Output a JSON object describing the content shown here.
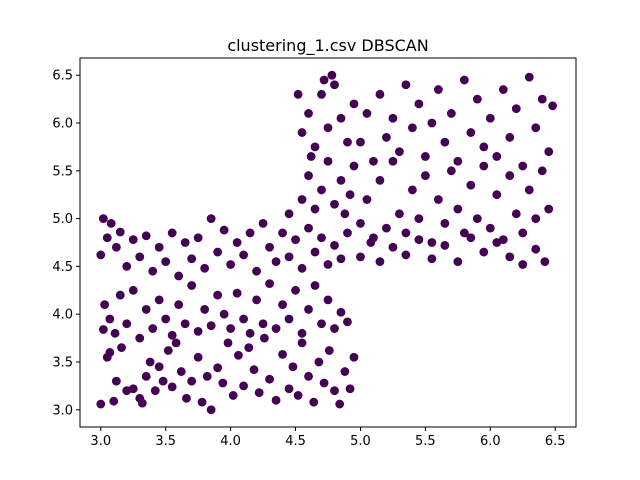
{
  "chart_data": {
    "type": "scatter",
    "title": "clustering_1.csv DBSCAN",
    "xlabel": "",
    "ylabel": "",
    "xlim": [
      2.84,
      6.66
    ],
    "ylim": [
      2.82,
      6.68
    ],
    "xticks": [
      3.0,
      3.5,
      4.0,
      4.5,
      5.0,
      5.5,
      6.0,
      6.5
    ],
    "yticks": [
      3.0,
      3.5,
      4.0,
      4.5,
      5.0,
      5.5,
      6.0,
      6.5
    ],
    "grid": false,
    "marker_color": "#440154",
    "series": [
      {
        "points": [
          [
            3.0,
            3.06
          ],
          [
            3.02,
            3.84
          ],
          [
            3.05,
            3.55
          ],
          [
            3.07,
            3.6
          ],
          [
            3.1,
            3.09
          ],
          [
            3.12,
            3.3
          ],
          [
            3.16,
            3.65
          ],
          [
            3.2,
            3.2
          ],
          [
            3.25,
            3.22
          ],
          [
            3.3,
            3.12
          ],
          [
            3.32,
            3.07
          ],
          [
            3.35,
            3.35
          ],
          [
            3.38,
            3.5
          ],
          [
            3.42,
            3.2
          ],
          [
            3.45,
            3.45
          ],
          [
            3.48,
            3.3
          ],
          [
            3.52,
            3.62
          ],
          [
            3.55,
            3.24
          ],
          [
            3.58,
            3.7
          ],
          [
            3.62,
            3.4
          ],
          [
            3.66,
            3.12
          ],
          [
            3.7,
            3.3
          ],
          [
            3.75,
            3.55
          ],
          [
            3.78,
            3.08
          ],
          [
            3.82,
            3.35
          ],
          [
            3.85,
            3.0
          ],
          [
            3.9,
            3.44
          ],
          [
            3.94,
            3.28
          ],
          [
            3.98,
            3.7
          ],
          [
            4.02,
            3.15
          ],
          [
            4.06,
            3.57
          ],
          [
            4.1,
            3.25
          ],
          [
            4.14,
            3.65
          ],
          [
            4.18,
            3.42
          ],
          [
            4.22,
            3.18
          ],
          [
            4.26,
            3.75
          ],
          [
            4.3,
            3.32
          ],
          [
            4.35,
            3.1
          ],
          [
            4.4,
            3.58
          ],
          [
            4.45,
            3.22
          ],
          [
            4.48,
            3.45
          ],
          [
            4.52,
            3.15
          ],
          [
            4.55,
            3.7
          ],
          [
            4.6,
            3.35
          ],
          [
            4.64,
            3.08
          ],
          [
            4.68,
            3.5
          ],
          [
            4.72,
            3.28
          ],
          [
            4.76,
            3.62
          ],
          [
            4.8,
            3.2
          ],
          [
            4.84,
            3.06
          ],
          [
            4.88,
            3.4
          ],
          [
            4.92,
            3.22
          ],
          [
            4.95,
            3.55
          ],
          [
            3.03,
            4.1
          ],
          [
            3.07,
            3.95
          ],
          [
            3.11,
            3.8
          ],
          [
            3.15,
            4.2
          ],
          [
            3.2,
            3.9
          ],
          [
            3.25,
            4.25
          ],
          [
            3.3,
            3.75
          ],
          [
            3.35,
            4.05
          ],
          [
            3.4,
            3.85
          ],
          [
            3.45,
            4.15
          ],
          [
            3.5,
            3.95
          ],
          [
            3.55,
            3.78
          ],
          [
            3.6,
            4.1
          ],
          [
            3.65,
            3.9
          ],
          [
            3.7,
            4.3
          ],
          [
            3.75,
            3.82
          ],
          [
            3.8,
            4.05
          ],
          [
            3.85,
            3.88
          ],
          [
            3.9,
            4.2
          ],
          [
            3.95,
            4.0
          ],
          [
            4.0,
            3.85
          ],
          [
            4.05,
            4.22
          ],
          [
            4.1,
            3.95
          ],
          [
            4.15,
            3.8
          ],
          [
            4.2,
            4.15
          ],
          [
            4.25,
            3.9
          ],
          [
            4.3,
            4.32
          ],
          [
            4.35,
            3.85
          ],
          [
            4.4,
            4.1
          ],
          [
            4.45,
            3.95
          ],
          [
            4.5,
            4.25
          ],
          [
            4.55,
            3.8
          ],
          [
            4.6,
            4.05
          ],
          [
            4.65,
            4.3
          ],
          [
            4.7,
            3.9
          ],
          [
            4.75,
            4.15
          ],
          [
            4.8,
            3.85
          ],
          [
            4.85,
            4.02
          ],
          [
            4.9,
            3.92
          ],
          [
            3.0,
            4.62
          ],
          [
            3.02,
            5.0
          ],
          [
            3.05,
            4.8
          ],
          [
            3.08,
            4.95
          ],
          [
            3.12,
            4.7
          ],
          [
            3.15,
            4.86
          ],
          [
            3.2,
            4.5
          ],
          [
            3.25,
            4.78
          ],
          [
            3.3,
            4.6
          ],
          [
            3.35,
            4.82
          ],
          [
            3.4,
            4.45
          ],
          [
            3.45,
            4.7
          ],
          [
            3.5,
            4.55
          ],
          [
            3.55,
            4.85
          ],
          [
            3.6,
            4.4
          ],
          [
            3.65,
            4.75
          ],
          [
            3.7,
            4.58
          ],
          [
            3.75,
            4.8
          ],
          [
            3.8,
            4.48
          ],
          [
            3.85,
            5.0
          ],
          [
            3.9,
            4.65
          ],
          [
            3.95,
            4.88
          ],
          [
            4.0,
            4.52
          ],
          [
            4.05,
            4.75
          ],
          [
            4.1,
            4.62
          ],
          [
            4.15,
            4.85
          ],
          [
            4.2,
            4.45
          ],
          [
            4.25,
            4.95
          ],
          [
            4.3,
            4.7
          ],
          [
            4.35,
            4.55
          ],
          [
            4.4,
            4.85
          ],
          [
            4.45,
            4.6
          ],
          [
            4.5,
            4.78
          ],
          [
            4.55,
            4.48
          ],
          [
            4.6,
            4.9
          ],
          [
            4.65,
            4.65
          ],
          [
            4.7,
            4.8
          ],
          [
            4.75,
            4.52
          ],
          [
            4.8,
            4.72
          ],
          [
            4.85,
            4.58
          ],
          [
            4.9,
            4.85
          ],
          [
            4.45,
            5.05
          ],
          [
            4.55,
            5.2
          ],
          [
            4.6,
            5.45
          ],
          [
            4.65,
            5.1
          ],
          [
            4.7,
            5.3
          ],
          [
            4.75,
            5.6
          ],
          [
            4.8,
            5.15
          ],
          [
            4.85,
            5.4
          ],
          [
            4.88,
            5.05
          ],
          [
            4.92,
            5.25
          ],
          [
            4.95,
            5.55
          ],
          [
            4.55,
            5.9
          ],
          [
            4.6,
            6.1
          ],
          [
            4.65,
            5.75
          ],
          [
            4.7,
            6.3
          ],
          [
            4.75,
            5.95
          ],
          [
            4.8,
            6.4
          ],
          [
            4.85,
            6.05
          ],
          [
            4.9,
            5.8
          ],
          [
            4.95,
            6.2
          ],
          [
            4.52,
            6.3
          ],
          [
            4.62,
            5.65
          ],
          [
            4.72,
            6.45
          ],
          [
            4.78,
            6.5
          ],
          [
            5.0,
            4.95
          ],
          [
            5.05,
            5.2
          ],
          [
            5.1,
            4.8
          ],
          [
            5.15,
            5.4
          ],
          [
            5.2,
            4.9
          ],
          [
            5.25,
            5.6
          ],
          [
            5.3,
            5.05
          ],
          [
            5.35,
            4.85
          ],
          [
            5.4,
            5.3
          ],
          [
            5.45,
            5.0
          ],
          [
            5.5,
            5.45
          ],
          [
            5.55,
            4.75
          ],
          [
            5.6,
            5.2
          ],
          [
            5.65,
            4.95
          ],
          [
            5.7,
            5.5
          ],
          [
            5.75,
            5.1
          ],
          [
            5.8,
            4.85
          ],
          [
            5.85,
            5.35
          ],
          [
            5.9,
            5.0
          ],
          [
            5.95,
            5.55
          ],
          [
            6.0,
            4.9
          ],
          [
            6.05,
            5.25
          ],
          [
            6.1,
            4.78
          ],
          [
            6.15,
            5.45
          ],
          [
            6.2,
            5.05
          ],
          [
            6.25,
            4.85
          ],
          [
            6.3,
            5.3
          ],
          [
            6.35,
            5.0
          ],
          [
            6.4,
            5.5
          ],
          [
            6.45,
            5.1
          ],
          [
            5.0,
            4.6
          ],
          [
            5.08,
            4.75
          ],
          [
            5.15,
            4.55
          ],
          [
            5.25,
            4.7
          ],
          [
            5.35,
            4.62
          ],
          [
            5.45,
            4.78
          ],
          [
            5.55,
            4.58
          ],
          [
            5.65,
            4.72
          ],
          [
            5.75,
            4.55
          ],
          [
            5.85,
            4.8
          ],
          [
            5.95,
            4.65
          ],
          [
            6.05,
            4.75
          ],
          [
            6.15,
            4.6
          ],
          [
            6.25,
            4.52
          ],
          [
            6.35,
            4.68
          ],
          [
            6.42,
            4.55
          ],
          [
            5.0,
            5.8
          ],
          [
            5.05,
            6.1
          ],
          [
            5.1,
            5.6
          ],
          [
            5.15,
            6.3
          ],
          [
            5.2,
            5.85
          ],
          [
            5.25,
            6.05
          ],
          [
            5.3,
            5.7
          ],
          [
            5.35,
            6.4
          ],
          [
            5.4,
            5.95
          ],
          [
            5.45,
            6.2
          ],
          [
            5.5,
            5.65
          ],
          [
            5.55,
            6.0
          ],
          [
            5.6,
            6.35
          ],
          [
            5.65,
            5.8
          ],
          [
            5.7,
            6.1
          ],
          [
            5.75,
            5.6
          ],
          [
            5.8,
            6.45
          ],
          [
            5.85,
            5.9
          ],
          [
            5.9,
            6.25
          ],
          [
            5.95,
            5.75
          ],
          [
            6.0,
            6.05
          ],
          [
            6.05,
            5.65
          ],
          [
            6.1,
            6.35
          ],
          [
            6.15,
            5.85
          ],
          [
            6.2,
            6.15
          ],
          [
            6.25,
            5.55
          ],
          [
            6.3,
            6.48
          ],
          [
            6.35,
            5.95
          ],
          [
            6.4,
            6.25
          ],
          [
            6.45,
            5.7
          ],
          [
            6.48,
            6.18
          ]
        ]
      }
    ]
  }
}
